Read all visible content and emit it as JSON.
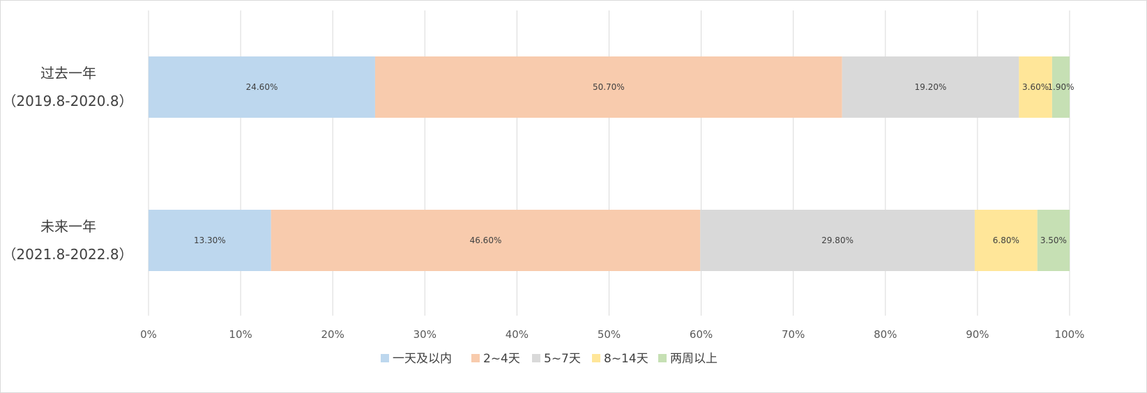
{
  "chart_data": {
    "type": "bar",
    "orientation": "horizontal",
    "stacked": "percent",
    "categories": [
      [
        "过去一年",
        "（2019.8-2020.8）"
      ],
      [
        "未来一年",
        "（2021.8-2022.8）"
      ]
    ],
    "series": [
      {
        "name": "一天及以内",
        "color": "#bdd7ee",
        "values": [
          24.6,
          13.3
        ],
        "labels": [
          "24.60%",
          "13.30%"
        ]
      },
      {
        "name": "2~4天",
        "color": "#f8cbad",
        "values": [
          50.7,
          46.6
        ],
        "labels": [
          "50.70%",
          "46.60%"
        ]
      },
      {
        "name": "5~7天",
        "color": "#d9d9d9",
        "values": [
          19.2,
          29.8
        ],
        "labels": [
          "19.20%",
          "29.80%"
        ]
      },
      {
        "name": "8~14天",
        "color": "#ffe699",
        "values": [
          3.6,
          6.8
        ],
        "labels": [
          "3.60%",
          "6.80%"
        ]
      },
      {
        "name": "两周以上",
        "color": "#c6e0b4",
        "values": [
          1.9,
          3.5
        ],
        "labels": [
          "1.90%",
          "3.50%"
        ]
      }
    ],
    "xlim": [
      0,
      100
    ],
    "xticks": [
      "0%",
      "10%",
      "20%",
      "30%",
      "40%",
      "50%",
      "60%",
      "70%",
      "80%",
      "90%",
      "100%"
    ],
    "grid": true,
    "legend_position": "bottom"
  }
}
